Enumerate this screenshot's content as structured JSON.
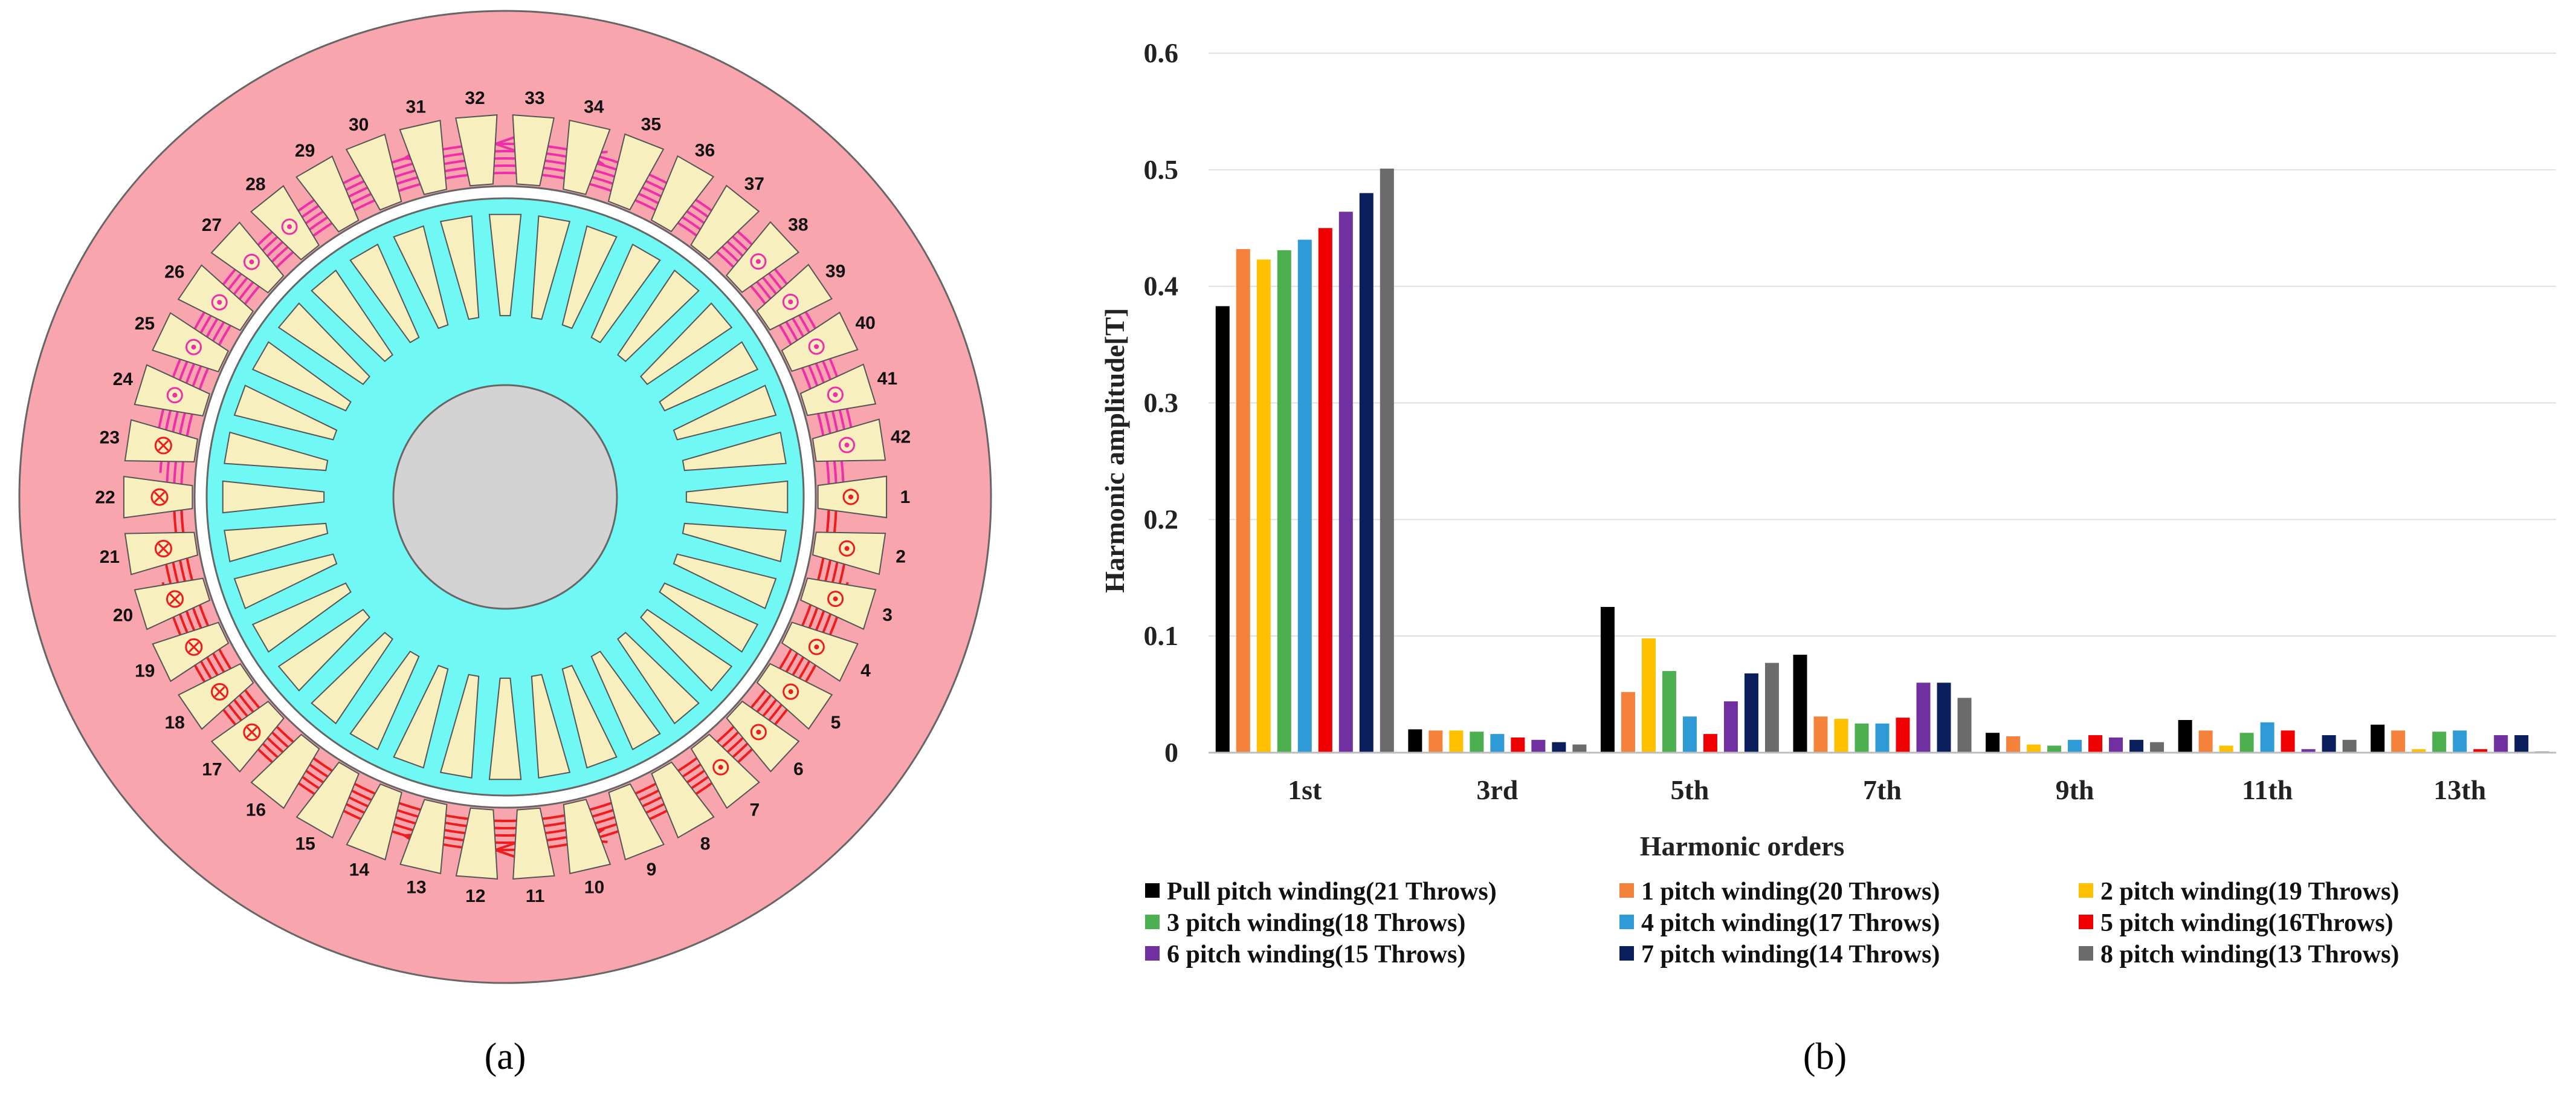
{
  "panel_labels": {
    "a": "(a)",
    "b": "(b)"
  },
  "motor": {
    "slot_count": 42,
    "rotor_bar_count": 36,
    "slot_labels": [
      "1",
      "2",
      "3",
      "4",
      "5",
      "6",
      "7",
      "8",
      "9",
      "10",
      "11",
      "12",
      "13",
      "14",
      "15",
      "16",
      "17",
      "18",
      "19",
      "20",
      "21",
      "22",
      "23",
      "24",
      "25",
      "26",
      "27",
      "28",
      "29",
      "30",
      "31",
      "32",
      "33",
      "34",
      "35",
      "36",
      "37",
      "38",
      "39",
      "40",
      "41",
      "42"
    ],
    "dot_slots": [
      1,
      2,
      3,
      4,
      5,
      6,
      7,
      38,
      39,
      40,
      41,
      42
    ],
    "cross_slots": [
      17,
      18,
      19,
      20,
      21,
      22,
      23
    ],
    "circled_dot_slots": [
      24,
      25,
      26,
      27,
      28
    ],
    "colors": {
      "stator": "#f8a5ad",
      "slot": "#f8efbf",
      "rotor": "#6ff8f4",
      "shaft": "#d3d3d3",
      "upper_flux": "#ef2fa9",
      "lower_flux": "#ee1d1d"
    }
  },
  "chart_data": {
    "type": "bar",
    "title": "",
    "xlabel": "Harmonic orders",
    "ylabel": "Harmonic amplitude[T]",
    "ylim": [
      0,
      0.6
    ],
    "yticks": [
      "0",
      "0.1",
      "0.2",
      "0.3",
      "0.4",
      "0.5",
      "0.6"
    ],
    "grid": true,
    "legend_position": "bottom",
    "categories": [
      "1st",
      "3rd",
      "5th",
      "7th",
      "9th",
      "11th",
      "13th"
    ],
    "series": [
      {
        "name": "Pull pitch winding(21 Throws)",
        "color": "#000000",
        "values": [
          0.383,
          0.02,
          0.125,
          0.084,
          0.017,
          0.028,
          0.024
        ]
      },
      {
        "name": "1 pitch winding(20 Throws)",
        "color": "#f4823a",
        "values": [
          0.432,
          0.019,
          0.052,
          0.031,
          0.014,
          0.019,
          0.019
        ]
      },
      {
        "name": "2 pitch winding(19 Throws)",
        "color": "#ffc000",
        "values": [
          0.423,
          0.019,
          0.098,
          0.029,
          0.007,
          0.006,
          0.003
        ]
      },
      {
        "name": "3 pitch winding(18 Throws)",
        "color": "#4caf50",
        "values": [
          0.431,
          0.018,
          0.07,
          0.025,
          0.006,
          0.017,
          0.018
        ]
      },
      {
        "name": "4 pitch winding(17 Throws)",
        "color": "#2e9bd6",
        "values": [
          0.44,
          0.016,
          0.031,
          0.025,
          0.011,
          0.026,
          0.019
        ]
      },
      {
        "name": "5 pitch winding(16Throws)",
        "color": "#f00000",
        "values": [
          0.45,
          0.013,
          0.016,
          0.03,
          0.015,
          0.019,
          0.003
        ]
      },
      {
        "name": "6 pitch winding(15 Throws)",
        "color": "#7030a0",
        "values": [
          0.464,
          0.011,
          0.044,
          0.06,
          0.013,
          0.003,
          0.015
        ]
      },
      {
        "name": "7 pitch winding(14 Throws)",
        "color": "#0a1f5c",
        "values": [
          0.48,
          0.009,
          0.068,
          0.06,
          0.011,
          0.015,
          0.015
        ]
      },
      {
        "name": "8 pitch winding(13 Throws)",
        "color": "#6b6b6b",
        "values": [
          0.501,
          0.007,
          0.077,
          0.047,
          0.009,
          0.011,
          0.001
        ]
      }
    ]
  }
}
